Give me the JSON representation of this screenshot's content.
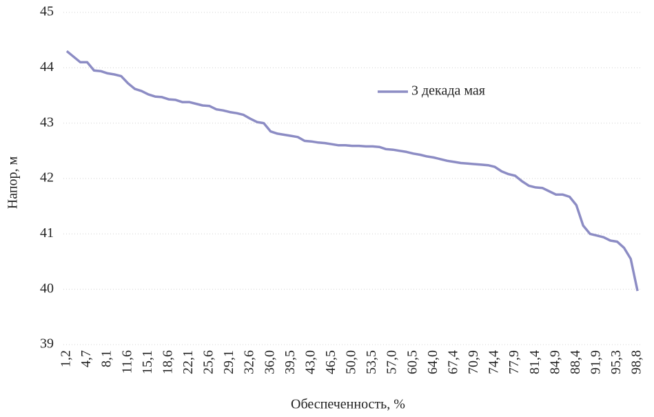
{
  "chart_data": {
    "type": "line",
    "x_label": "Обеспеченность, %",
    "y_label": "Напор, м",
    "categories": [
      "1,2",
      null,
      null,
      "4,7",
      null,
      null,
      "8,1",
      null,
      null,
      "11,6",
      null,
      null,
      "15,1",
      null,
      null,
      "18,6",
      null,
      null,
      "22,1",
      null,
      null,
      "25,6",
      null,
      null,
      "29,1",
      null,
      null,
      "32,6",
      null,
      null,
      "36,0",
      null,
      null,
      "39,5",
      null,
      null,
      "43,0",
      null,
      null,
      "46,5",
      null,
      null,
      "50,0",
      null,
      null,
      "53,5",
      null,
      null,
      "57,0",
      null,
      null,
      "60,5",
      null,
      null,
      "64,0",
      null,
      null,
      "67,4",
      null,
      null,
      "70,9",
      null,
      null,
      "74,4",
      null,
      null,
      "77,9",
      null,
      null,
      "81,4",
      null,
      null,
      "84,9",
      null,
      null,
      "88,4",
      null,
      null,
      "91,9",
      null,
      null,
      "95,3",
      null,
      null,
      "98,8"
    ],
    "series": [
      {
        "name": "3 декада мая",
        "color": "#8c8cc4",
        "values": [
          44.3,
          44.2,
          44.1,
          44.1,
          43.95,
          43.94,
          43.9,
          43.88,
          43.85,
          43.72,
          43.62,
          43.58,
          43.52,
          43.48,
          43.47,
          43.43,
          43.42,
          43.38,
          43.38,
          43.35,
          43.32,
          43.31,
          43.25,
          43.23,
          43.2,
          43.18,
          43.15,
          43.08,
          43.02,
          43.0,
          42.85,
          42.81,
          42.79,
          42.77,
          42.75,
          42.68,
          42.67,
          42.65,
          42.64,
          42.62,
          42.6,
          42.6,
          42.59,
          42.59,
          42.58,
          42.58,
          42.57,
          42.53,
          42.52,
          42.5,
          42.48,
          42.45,
          42.43,
          42.4,
          42.38,
          42.35,
          42.32,
          42.3,
          42.28,
          42.27,
          42.26,
          42.25,
          42.24,
          42.21,
          42.13,
          42.08,
          42.05,
          41.95,
          41.87,
          41.84,
          41.83,
          41.77,
          41.71,
          41.71,
          41.67,
          41.52,
          41.15,
          41.0,
          40.97,
          40.94,
          40.88,
          40.86,
          40.75,
          40.55,
          39.97
        ]
      }
    ],
    "ylim": [
      39,
      45
    ],
    "yticks": [
      39,
      40,
      41,
      42,
      43,
      44,
      45
    ],
    "grid": true,
    "legend": "upper right"
  }
}
